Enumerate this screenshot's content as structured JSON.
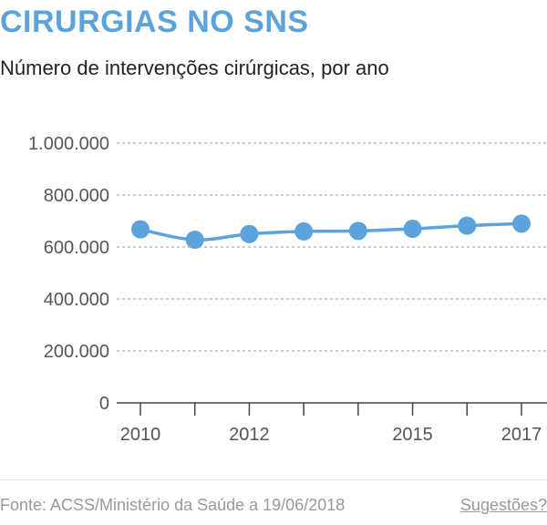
{
  "header": {
    "title": "CIRURGIAS NO SNS",
    "subtitle": "Número de intervenções cirúrgicas, por ano"
  },
  "footer": {
    "source": "Fonte: ACSS/Ministério da Saúde a 19/06/2018",
    "suggestions_link": "Sugestões?"
  },
  "colors": {
    "accent": "#5ba3dc",
    "series": "#5ba3dc",
    "axis": "#444444",
    "grid": "#999999",
    "tick_text": "#555555"
  },
  "chart_data": {
    "type": "line",
    "title": "CIRURGIAS NO SNS",
    "subtitle": "Número de intervenções cirúrgicas, por ano",
    "x": [
      2010,
      2011,
      2012,
      2013,
      2014,
      2015,
      2016,
      2017
    ],
    "x_tick_labels": [
      {
        "x": 2010,
        "label": "2010"
      },
      {
        "x": 2012,
        "label": "2012"
      },
      {
        "x": 2015,
        "label": "2015"
      },
      {
        "x": 2017,
        "label": "2017"
      }
    ],
    "series": [
      {
        "values": [
          668000,
          628000,
          650000,
          660000,
          662000,
          670000,
          682000,
          690000
        ]
      }
    ],
    "ylim": [
      0,
      1000000
    ],
    "y_ticks": [
      {
        "value": 0,
        "label": "0"
      },
      {
        "value": 200000,
        "label": "200.000"
      },
      {
        "value": 400000,
        "label": "400.000"
      },
      {
        "value": 600000,
        "label": "600.000"
      },
      {
        "value": 800000,
        "label": "800.000"
      },
      {
        "value": 1000000,
        "label": "1.000.000"
      }
    ],
    "grid": "horizontal dashed",
    "legend": "none"
  }
}
